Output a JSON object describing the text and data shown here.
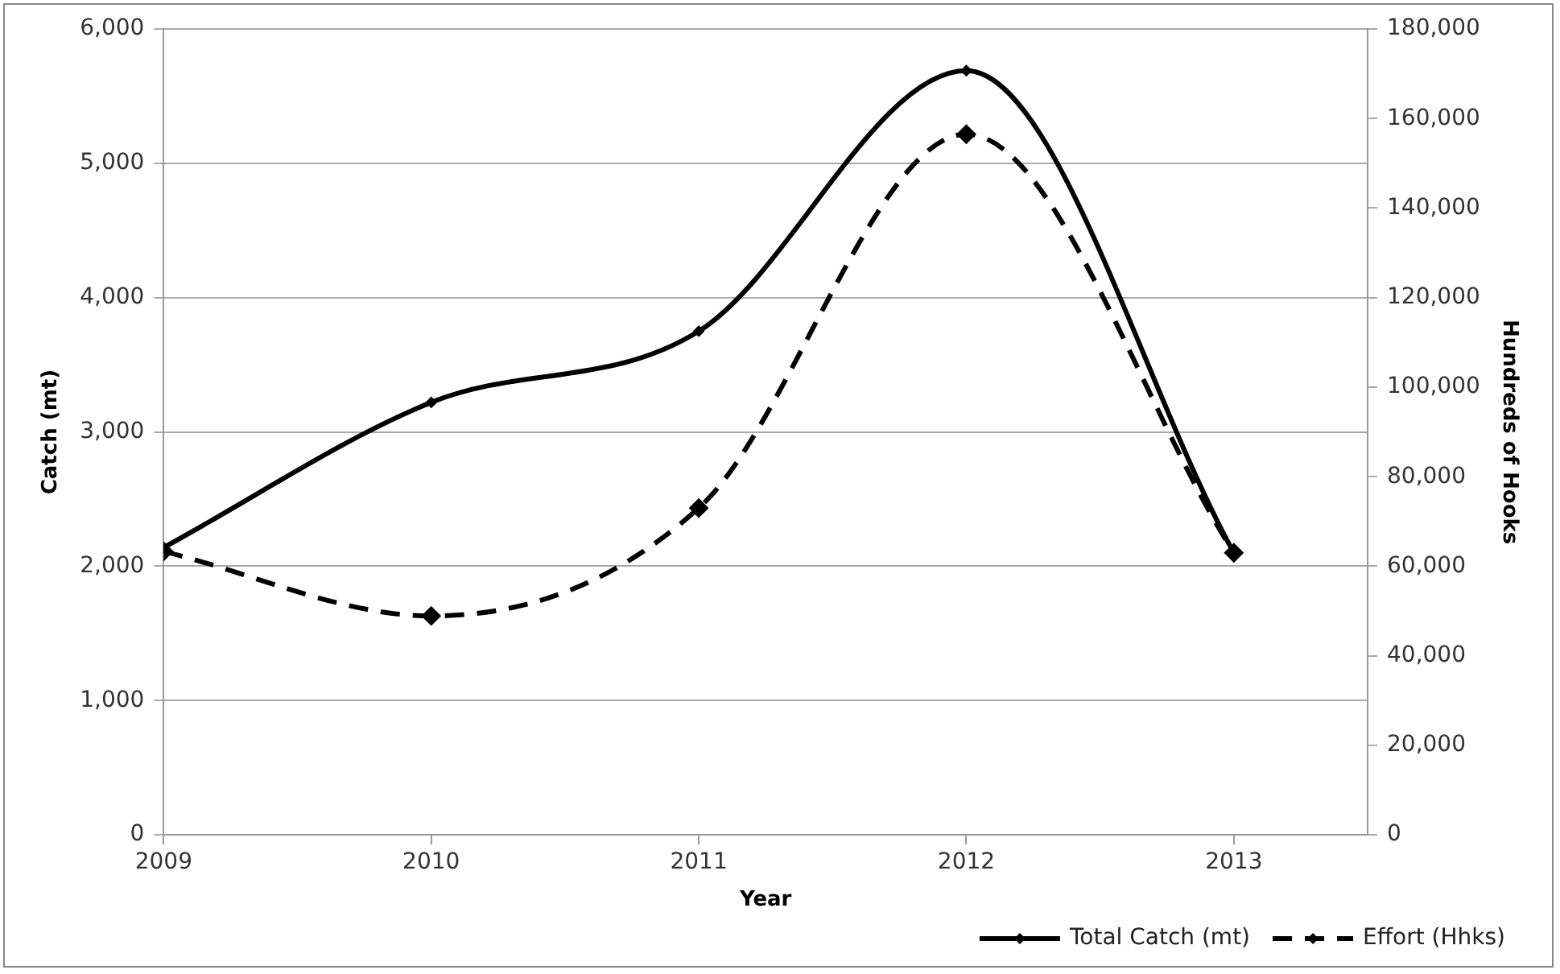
{
  "chart_data": {
    "type": "line",
    "xlabel": "Year",
    "ylabel": "Catch (mt)",
    "y2label": "Hundreds of Hooks",
    "x": [
      2009,
      2010,
      2011,
      2012,
      2013
    ],
    "xlim": [
      2009,
      2013.5
    ],
    "xticks": [
      2009,
      2010,
      2011,
      2012,
      2013
    ],
    "ylim": [
      0,
      6000
    ],
    "yticks": [
      0,
      {
        "value": 1000,
        "label": "1,000"
      },
      {
        "value": 2000,
        "label": "2,000"
      },
      {
        "value": 3000,
        "label": "3,000"
      },
      {
        "value": 4000,
        "label": "4,000"
      },
      {
        "value": 5000,
        "label": "5,000"
      },
      {
        "value": 6000,
        "label": "6,000"
      }
    ],
    "y2lim": [
      0,
      180000
    ],
    "y2ticks": [
      0,
      {
        "value": 20000,
        "label": "20,000"
      },
      {
        "value": 40000,
        "label": "40,000"
      },
      {
        "value": 60000,
        "label": "60,000"
      },
      {
        "value": 80000,
        "label": "80,000"
      },
      {
        "value": 100000,
        "label": "100,000"
      },
      {
        "value": 120000,
        "label": "120,000"
      },
      {
        "value": 140000,
        "label": "140,000"
      },
      {
        "value": 160000,
        "label": "160,000"
      },
      {
        "value": 180000,
        "label": "180,000"
      }
    ],
    "series": [
      {
        "name": "Total Catch (mt)",
        "color": "#000000",
        "values": [
          2140,
          3220,
          3750,
          5690,
          2100
        ],
        "line_style": "solid"
      },
      {
        "name": "Effort (Hhks)",
        "color": "#000000",
        "values": [
          63300,
          48900,
          73000,
          156500,
          63000
        ],
        "axis": "y2",
        "line_style": "dashed"
      }
    ],
    "grid": "y",
    "legend": "bottom right",
    "marker": "diamond"
  }
}
